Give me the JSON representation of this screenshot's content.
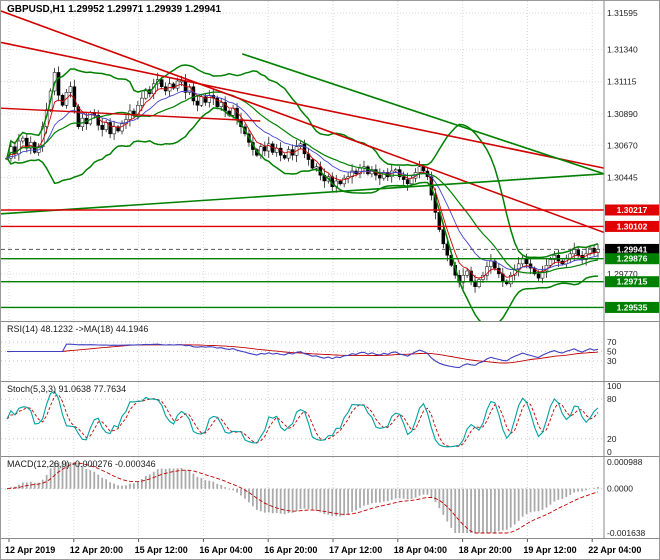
{
  "title": "GBPUSD,H1 1.29952 1.29971 1.29939 1.29941",
  "colors": {
    "grid": "#d9d9d9",
    "candle_up": "#ffffff",
    "candle_down": "#000000",
    "candle_border": "#000000",
    "bollinger": "#008000",
    "ma_fast": "#d00000",
    "ma_slow": "#4444cc",
    "resistance": "#e00000",
    "support": "#008000",
    "current_price_line": "#555555",
    "rsi_line": "#4040c0",
    "rsi_ma": "#c00000",
    "stoch_k": "#00a0a0",
    "stoch_d": "#c00000",
    "macd_hist": "#aaaaaa",
    "macd_signal": "#c00000"
  },
  "chart_data": {
    "type": "candlestick",
    "symbol": "GBPUSD",
    "timeframe": "H1",
    "quote": {
      "open": 1.29952,
      "high": 1.29971,
      "low": 1.29939,
      "close": 1.29941
    },
    "x_labels": [
      "12 Apr 2019",
      "12 Apr 20:00",
      "15 Apr 12:00",
      "16 Apr 04:00",
      "16 Apr 20:00",
      "17 Apr 12:00",
      "18 Apr 04:00",
      "18 Apr 20:00",
      "19 Apr 12:00",
      "22 Apr 04:00"
    ],
    "price_axis_plain": [
      1.31595,
      1.3134,
      1.31115,
      1.3089,
      1.3067,
      1.30445,
      1.2977
    ],
    "axis_boxes": [
      {
        "value": "1.30217",
        "color": "#e00000"
      },
      {
        "value": "1.30102",
        "color": "#e00000"
      },
      {
        "value": "1.29941",
        "color": "#000000"
      },
      {
        "value": "1.29876",
        "color": "#008000"
      },
      {
        "value": "1.29715",
        "color": "#008000"
      },
      {
        "value": "1.29535",
        "color": "#008000"
      }
    ],
    "levels": {
      "resistance": [
        1.30217,
        1.30102
      ],
      "support": [
        1.29876,
        1.29715,
        1.29535
      ],
      "current": 1.29941
    },
    "trend_lines": [
      {
        "color": "#d00000",
        "width": 1.6,
        "from": [
          0,
          1.3161
        ],
        "to": [
          1,
          1.3006
        ]
      },
      {
        "color": "#d00000",
        "width": 1.6,
        "from": [
          0,
          1.3139
        ],
        "to": [
          1,
          1.3051
        ]
      },
      {
        "color": "#d00000",
        "width": 1.4,
        "from": [
          0,
          1.3093
        ],
        "to": [
          0.43,
          1.3084
        ]
      },
      {
        "color": "#008000",
        "width": 1.6,
        "from": [
          0,
          1.3019
        ],
        "to": [
          1,
          1.3047
        ]
      },
      {
        "color": "#008000",
        "width": 1.6,
        "from": [
          0.4,
          1.3131
        ],
        "to": [
          1,
          1.3047
        ]
      }
    ],
    "closes": [
      1.3058,
      1.3066,
      1.3061,
      1.307,
      1.3072,
      1.3065,
      1.3069,
      1.3062,
      1.3066,
      1.308,
      1.3092,
      1.3105,
      1.3118,
      1.3102,
      1.3095,
      1.3104,
      1.3108,
      1.3094,
      1.308,
      1.3086,
      1.3082,
      1.309,
      1.3088,
      1.3081,
      1.3078,
      1.3083,
      1.3075,
      1.308,
      1.3077,
      1.3082,
      1.3085,
      1.3091,
      1.3088,
      1.3095,
      1.31,
      1.3106,
      1.3103,
      1.311,
      1.3113,
      1.3108,
      1.3105,
      1.311,
      1.3107,
      1.3112,
      1.3112,
      1.3104,
      1.3108,
      1.3098,
      1.3095,
      1.3101,
      1.3097,
      1.3102,
      1.31,
      1.3094,
      1.3097,
      1.3091,
      1.3088,
      1.3093,
      1.3085,
      1.308,
      1.3075,
      1.3069,
      1.3064,
      1.306,
      1.3066,
      1.3063,
      1.3068,
      1.3062,
      1.3065,
      1.306,
      1.3058,
      1.3064,
      1.306,
      1.3066,
      1.3068,
      1.3061,
      1.3057,
      1.3051,
      1.3052,
      1.3046,
      1.3042,
      1.3045,
      1.3038,
      1.3042,
      1.304,
      1.3044,
      1.3045,
      1.3049,
      1.3047,
      1.3051,
      1.3052,
      1.3047,
      1.305,
      1.3046,
      1.3044,
      1.3048,
      1.3045,
      1.3049,
      1.305,
      1.3045,
      1.3043,
      1.304,
      1.3044,
      1.3048,
      1.3052,
      1.3049,
      1.3045,
      1.3032,
      1.302,
      1.3008,
      1.2998,
      1.299,
      1.2983,
      1.2976,
      1.2971,
      1.2976,
      1.2979,
      1.2972,
      1.2968,
      1.2973,
      1.2976,
      1.2982,
      1.2986,
      1.2981,
      1.2977,
      1.2972,
      1.297,
      1.2976,
      1.298,
      1.2984,
      1.2988,
      1.2984,
      1.2981,
      1.2977,
      1.2974,
      1.2979,
      1.2983,
      1.2987,
      1.299,
      1.2986,
      1.2984,
      1.2988,
      1.2991,
      1.2994,
      1.299,
      1.2987,
      1.2991,
      1.2995,
      1.2992,
      1.29941
    ],
    "panels": {
      "rsi": {
        "label": "RSI(14) 48.1232  ->MA(18) 44.1946",
        "value": 48.1232,
        "ma": 44.1946,
        "period": 14,
        "ma_period": 18,
        "axis": [
          "70",
          "50",
          "30"
        ],
        "levels": [
          70,
          50,
          30
        ],
        "range": [
          0,
          100
        ]
      },
      "stoch": {
        "label": "Stoch(5,3,3) 91.0638 77.7634",
        "k": 91.0638,
        "d": 77.7634,
        "axis": [
          "100",
          "80",
          "20",
          "0"
        ],
        "levels": [
          80,
          20
        ],
        "range": [
          0,
          100
        ]
      },
      "macd": {
        "label": "MACD(12,26,9) -0.000276 -0.000346",
        "macd": -0.000276,
        "signal": -0.000346,
        "axis": [
          "0.000988",
          "0.0000",
          "-0.001638"
        ],
        "range": [
          -0.001638,
          0.000988
        ]
      }
    }
  }
}
